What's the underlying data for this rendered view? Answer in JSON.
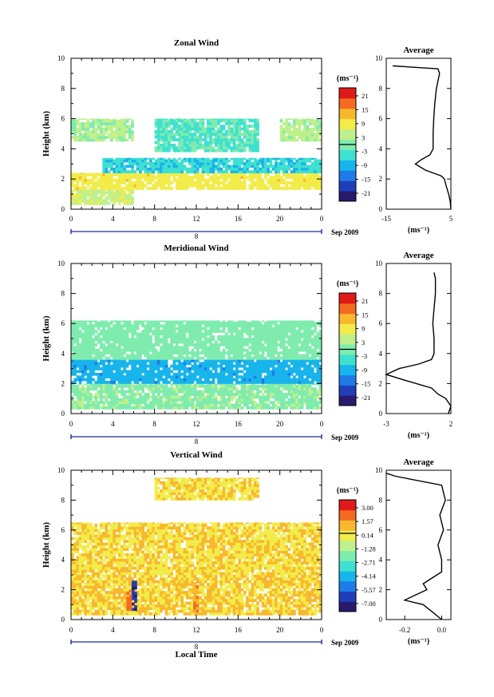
{
  "figure": {
    "panels": [
      {
        "title": "Zonal Wind",
        "ylabel": "Height (km)",
        "yticks": [
          "0",
          "2",
          "4",
          "6",
          "8",
          "10"
        ],
        "xticks": [
          "0",
          "4",
          "8",
          "12",
          "16",
          "20",
          "0"
        ],
        "day_label": "8",
        "date_label": "Sep 2009",
        "colorbar_unit": "(ms⁻¹)",
        "colorbar_ticks": [
          "21",
          "15",
          "9",
          "3",
          "-3",
          "-9",
          "-15",
          "-21"
        ],
        "avg_title": "Average",
        "avg_xticks": [
          "-15",
          "5"
        ],
        "avg_unit": "(ms⁻¹)"
      },
      {
        "title": "Meridional Wind",
        "ylabel": "Height (km)",
        "yticks": [
          "0",
          "2",
          "4",
          "6",
          "8",
          "10"
        ],
        "xticks": [
          "0",
          "4",
          "8",
          "12",
          "16",
          "20",
          "0"
        ],
        "day_label": "8",
        "date_label": "Sep 2009",
        "colorbar_unit": "(ms⁻¹)",
        "colorbar_ticks": [
          "21",
          "15",
          "9",
          "3",
          "-3",
          "-9",
          "-15",
          "-21"
        ],
        "avg_title": "Average",
        "avg_xticks": [
          "-3",
          "2"
        ],
        "avg_unit": "(ms⁻¹)"
      },
      {
        "title": "Vertical Wind",
        "ylabel": "Height (km)",
        "yticks": [
          "0",
          "2",
          "4",
          "6",
          "8",
          "10"
        ],
        "xticks": [
          "0",
          "4",
          "8",
          "12",
          "16",
          "20",
          "0"
        ],
        "day_label": "8",
        "date_label": "Sep 2009",
        "colorbar_unit": "(ms⁻¹)",
        "colorbar_ticks": [
          "3.00",
          "1.57",
          "0.14",
          "-1.28",
          "-2.71",
          "-4.14",
          "-5.57",
          "-7.00"
        ],
        "avg_title": "Average",
        "avg_xticks": [
          "-0.2",
          "0.0"
        ],
        "avg_unit": "(ms⁻¹)"
      }
    ],
    "xlabel": "Local Time",
    "colors": {
      "palette": [
        "#2a1a6e",
        "#1f3fb8",
        "#1e7be8",
        "#18b4ec",
        "#3fe0d0",
        "#7fecae",
        "#bff08c",
        "#f2ec4a",
        "#f8b82e",
        "#f56a22",
        "#e01a1a"
      ]
    }
  },
  "chart_data": [
    {
      "type": "heatmap",
      "title": "Zonal Wind",
      "xlabel": "",
      "ylabel": "Height (km)",
      "xlim": [
        0,
        24
      ],
      "ylim": [
        0,
        10
      ],
      "x_unit": "Local Time (hours, 8 Sep 2009)",
      "colorbar_range": [
        -21,
        21
      ],
      "regions": [
        {
          "t": [
            0,
            6
          ],
          "h": [
            0.3,
            1.3
          ],
          "value": 5
        },
        {
          "t": [
            0,
            24
          ],
          "h": [
            1.3,
            2.4
          ],
          "value": 8
        },
        {
          "t": [
            3,
            24
          ],
          "h": [
            2.4,
            3.4
          ],
          "value": -5
        },
        {
          "t": [
            0,
            6
          ],
          "h": [
            4.5,
            6.0
          ],
          "value": 2
        },
        {
          "t": [
            8,
            18
          ],
          "h": [
            3.8,
            6.0
          ],
          "value": -2
        },
        {
          "t": [
            20,
            24
          ],
          "h": [
            4.5,
            6.0
          ],
          "value": 3
        }
      ],
      "average_profile": {
        "title": "Average",
        "xlim": [
          -15,
          5
        ],
        "height": [
          0.0,
          0.5,
          1.0,
          1.5,
          2.0,
          2.2,
          2.6,
          3.0,
          3.3,
          3.6,
          4.0,
          5.0,
          6.0,
          7.0,
          8.0,
          9.0,
          9.3,
          9.5
        ],
        "value": [
          5.0,
          4.8,
          4.3,
          3.6,
          3.0,
          2.0,
          -3.0,
          -6.0,
          -4.0,
          -1.5,
          -0.5,
          -0.5,
          -0.3,
          0.0,
          0.5,
          1.5,
          1.0,
          -13.0
        ]
      }
    },
    {
      "type": "heatmap",
      "title": "Meridional Wind",
      "xlabel": "",
      "ylabel": "Height (km)",
      "xlim": [
        0,
        24
      ],
      "ylim": [
        0,
        10
      ],
      "x_unit": "Local Time (hours, 8 Sep 2009)",
      "colorbar_range": [
        -21,
        21
      ],
      "regions": [
        {
          "t": [
            0,
            24
          ],
          "h": [
            0.3,
            2.0
          ],
          "value": 1
        },
        {
          "t": [
            0,
            24
          ],
          "h": [
            2.0,
            3.6
          ],
          "value": -8
        },
        {
          "t": [
            0,
            24
          ],
          "h": [
            3.6,
            6.2
          ],
          "value": 0
        }
      ],
      "average_profile": {
        "title": "Average",
        "xlim": [
          -3,
          2
        ],
        "height": [
          0.0,
          0.5,
          1.0,
          1.3,
          1.7,
          2.2,
          2.6,
          3.0,
          3.3,
          3.6,
          4.0,
          5.0,
          6.0,
          7.0,
          8.0,
          9.0,
          9.4
        ],
        "value": [
          1.8,
          2.0,
          1.6,
          1.0,
          0.5,
          -1.5,
          -3.0,
          -2.0,
          -0.5,
          0.5,
          0.7,
          0.7,
          0.6,
          0.7,
          0.8,
          0.8,
          0.7
        ]
      }
    },
    {
      "type": "heatmap",
      "title": "Vertical Wind",
      "xlabel": "Local Time",
      "ylabel": "Height (km)",
      "xlim": [
        0,
        24
      ],
      "ylim": [
        0,
        10
      ],
      "x_unit": "Local Time (hours, 8 Sep 2009)",
      "colorbar_range": [
        -7.0,
        3.0
      ],
      "regions": [
        {
          "t": [
            0,
            24
          ],
          "h": [
            0.3,
            3.0
          ],
          "value": 0.3
        },
        {
          "t": [
            0,
            24
          ],
          "h": [
            3.0,
            6.5
          ],
          "value": 0.2
        },
        {
          "t": [
            8,
            18
          ],
          "h": [
            8.0,
            9.5
          ],
          "value": 0.2
        },
        {
          "t": [
            5.8,
            6.3
          ],
          "h": [
            0.6,
            2.6
          ],
          "value": -6.0
        },
        {
          "t": [
            5.3,
            5.8
          ],
          "h": [
            0.6,
            2.0
          ],
          "value": 1.8
        },
        {
          "t": [
            11.7,
            12.2
          ],
          "h": [
            0.5,
            2.5
          ],
          "value": 1.2
        }
      ],
      "average_profile": {
        "title": "Average",
        "xlim": [
          -0.3,
          0.05
        ],
        "height": [
          0.0,
          0.5,
          1.0,
          1.3,
          1.6,
          2.0,
          2.4,
          2.8,
          3.2,
          4.0,
          5.0,
          6.0,
          7.0,
          8.0,
          9.0,
          9.6,
          9.8
        ],
        "value": [
          0.0,
          -0.05,
          -0.1,
          -0.2,
          -0.15,
          -0.08,
          -0.1,
          -0.05,
          0.0,
          0.0,
          -0.02,
          0.01,
          -0.01,
          0.02,
          0.0,
          -0.25,
          -0.3
        ]
      }
    }
  ]
}
